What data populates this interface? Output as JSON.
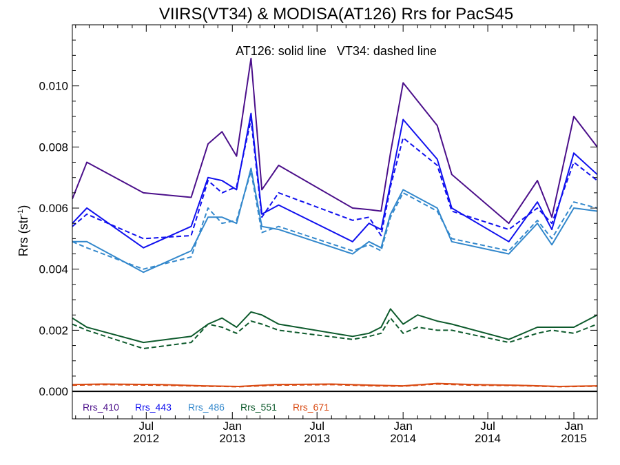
{
  "chart_data": {
    "type": "line",
    "title": "VIIRS(VT34) & MODISA(AT126)  Rrs for PacS45",
    "annotation": "AT126: solid line   VT34: dashed line",
    "ylabel": {
      "main": "Rrs (str",
      "sup": "-1",
      "close": ")"
    },
    "ylim": [
      -0.0009,
      0.012
    ],
    "yticks": [
      0.0,
      0.002,
      0.004,
      0.006,
      0.008,
      0.01
    ],
    "ytick_labels": [
      "0.000",
      "0.002",
      "0.004",
      "0.006",
      "0.008",
      "0.010"
    ],
    "xlim": [
      "2012-01-25",
      "2015-02-20"
    ],
    "xticks": [
      {
        "date": "2012-07-01",
        "month": "Jul",
        "year": "2012"
      },
      {
        "date": "2013-01-01",
        "month": "Jan",
        "year": "2013"
      },
      {
        "date": "2013-07-01",
        "month": "Jul",
        "year": "2013"
      },
      {
        "date": "2014-01-01",
        "month": "Jan",
        "year": "2014"
      },
      {
        "date": "2014-07-01",
        "month": "Jul",
        "year": "2014"
      },
      {
        "date": "2015-01-01",
        "month": "Jan",
        "year": "2015"
      }
    ],
    "line_styles": {
      "AT126": "solid",
      "VT34": "dashed"
    },
    "series": [
      {
        "name": "Rrs_410",
        "color": "#4b0f8a",
        "AT126": [
          [
            "2012-01-25",
            0.0063
          ],
          [
            "2012-02-25",
            0.0075
          ],
          [
            "2012-06-25",
            0.0065
          ],
          [
            "2012-10-05",
            0.00635
          ],
          [
            "2012-11-10",
            0.0081
          ],
          [
            "2012-12-10",
            0.0085
          ],
          [
            "2013-01-10",
            0.0077
          ],
          [
            "2013-02-10",
            0.0109
          ],
          [
            "2013-03-05",
            0.0066
          ],
          [
            "2013-04-10",
            0.0074
          ],
          [
            "2013-09-15",
            0.006
          ],
          [
            "2013-10-20",
            0.00595
          ],
          [
            "2013-11-15",
            0.0059
          ],
          [
            "2013-12-05",
            0.0078
          ],
          [
            "2014-01-01",
            0.0101
          ],
          [
            "2014-03-15",
            0.0087
          ],
          [
            "2014-04-15",
            0.0071
          ],
          [
            "2014-08-15",
            0.0055
          ],
          [
            "2014-10-15",
            0.0069
          ],
          [
            "2014-11-15",
            0.0057
          ],
          [
            "2015-01-01",
            0.009
          ],
          [
            "2015-02-20",
            0.008
          ]
        ]
      },
      {
        "name": "Rrs_443",
        "color": "#1010ee",
        "AT126": [
          [
            "2012-01-25",
            0.0055
          ],
          [
            "2012-02-25",
            0.006
          ],
          [
            "2012-06-25",
            0.0047
          ],
          [
            "2012-10-05",
            0.0054
          ],
          [
            "2012-11-10",
            0.007
          ],
          [
            "2012-12-10",
            0.0069
          ],
          [
            "2013-01-10",
            0.0066
          ],
          [
            "2013-02-10",
            0.0091
          ],
          [
            "2013-03-05",
            0.0058
          ],
          [
            "2013-04-10",
            0.0061
          ],
          [
            "2013-09-15",
            0.0049
          ],
          [
            "2013-10-20",
            0.0055
          ],
          [
            "2013-11-15",
            0.0053
          ],
          [
            "2013-12-05",
            0.0068
          ],
          [
            "2014-01-01",
            0.0089
          ],
          [
            "2014-03-15",
            0.0076
          ],
          [
            "2014-04-15",
            0.006
          ],
          [
            "2014-08-15",
            0.0049
          ],
          [
            "2014-10-15",
            0.0062
          ],
          [
            "2014-11-15",
            0.0053
          ],
          [
            "2015-01-01",
            0.0078
          ],
          [
            "2015-02-20",
            0.0071
          ]
        ],
        "VT34": [
          [
            "2012-01-25",
            0.0054
          ],
          [
            "2012-02-25",
            0.0058
          ],
          [
            "2012-06-25",
            0.005
          ],
          [
            "2012-10-05",
            0.0051
          ],
          [
            "2012-11-10",
            0.0069
          ],
          [
            "2012-12-10",
            0.0065
          ],
          [
            "2013-01-10",
            0.0067
          ],
          [
            "2013-02-10",
            0.0089
          ],
          [
            "2013-03-05",
            0.0057
          ],
          [
            "2013-04-10",
            0.0065
          ],
          [
            "2013-09-15",
            0.0056
          ],
          [
            "2013-10-20",
            0.0057
          ],
          [
            "2013-11-15",
            0.0051
          ],
          [
            "2013-12-05",
            0.0067
          ],
          [
            "2014-01-01",
            0.0083
          ],
          [
            "2014-03-15",
            0.0074
          ],
          [
            "2014-04-15",
            0.0059
          ],
          [
            "2014-08-15",
            0.0053
          ],
          [
            "2014-10-15",
            0.006
          ],
          [
            "2014-11-15",
            0.0055
          ],
          [
            "2015-01-01",
            0.0075
          ],
          [
            "2015-02-20",
            0.0069
          ]
        ]
      },
      {
        "name": "Rrs_486",
        "color": "#3388cc",
        "AT126": [
          [
            "2012-01-25",
            0.0049
          ],
          [
            "2012-02-25",
            0.0049
          ],
          [
            "2012-06-25",
            0.0039
          ],
          [
            "2012-10-05",
            0.0046
          ],
          [
            "2012-11-10",
            0.0057
          ],
          [
            "2012-12-10",
            0.0057
          ],
          [
            "2013-01-10",
            0.0055
          ],
          [
            "2013-02-10",
            0.0073
          ],
          [
            "2013-03-05",
            0.0054
          ],
          [
            "2013-04-10",
            0.0053
          ],
          [
            "2013-09-15",
            0.0045
          ],
          [
            "2013-10-20",
            0.0049
          ],
          [
            "2013-11-15",
            0.0047
          ],
          [
            "2013-12-05",
            0.0058
          ],
          [
            "2014-01-01",
            0.0066
          ],
          [
            "2014-03-15",
            0.006
          ],
          [
            "2014-04-15",
            0.0049
          ],
          [
            "2014-08-15",
            0.0045
          ],
          [
            "2014-10-15",
            0.0055
          ],
          [
            "2014-11-15",
            0.0048
          ],
          [
            "2015-01-01",
            0.006
          ],
          [
            "2015-02-20",
            0.0059
          ]
        ],
        "VT34": [
          [
            "2012-01-25",
            0.0049
          ],
          [
            "2012-02-25",
            0.0047
          ],
          [
            "2012-06-25",
            0.004
          ],
          [
            "2012-10-05",
            0.0044
          ],
          [
            "2012-11-10",
            0.006
          ],
          [
            "2012-12-10",
            0.0055
          ],
          [
            "2013-01-10",
            0.0056
          ],
          [
            "2013-02-10",
            0.0072
          ],
          [
            "2013-03-05",
            0.0052
          ],
          [
            "2013-04-10",
            0.0054
          ],
          [
            "2013-09-15",
            0.0046
          ],
          [
            "2013-10-20",
            0.0048
          ],
          [
            "2013-11-15",
            0.0046
          ],
          [
            "2013-12-05",
            0.0057
          ],
          [
            "2014-01-01",
            0.0065
          ],
          [
            "2014-03-15",
            0.0059
          ],
          [
            "2014-04-15",
            0.005
          ],
          [
            "2014-08-15",
            0.0046
          ],
          [
            "2014-10-15",
            0.0056
          ],
          [
            "2014-11-15",
            0.005
          ],
          [
            "2015-01-01",
            0.0062
          ],
          [
            "2015-02-20",
            0.006
          ]
        ]
      },
      {
        "name": "Rrs_551",
        "color": "#0d5a2c",
        "AT126": [
          [
            "2012-01-25",
            0.0024
          ],
          [
            "2012-02-25",
            0.0021
          ],
          [
            "2012-06-25",
            0.0016
          ],
          [
            "2012-10-05",
            0.0018
          ],
          [
            "2012-11-10",
            0.0022
          ],
          [
            "2012-12-10",
            0.0024
          ],
          [
            "2013-01-10",
            0.0021
          ],
          [
            "2013-02-10",
            0.0026
          ],
          [
            "2013-03-05",
            0.0025
          ],
          [
            "2013-04-10",
            0.0022
          ],
          [
            "2013-09-15",
            0.0018
          ],
          [
            "2013-10-20",
            0.0019
          ],
          [
            "2013-11-15",
            0.0021
          ],
          [
            "2013-12-05",
            0.0027
          ],
          [
            "2014-01-01",
            0.0022
          ],
          [
            "2014-02-01",
            0.0025
          ],
          [
            "2014-03-15",
            0.0023
          ],
          [
            "2014-04-15",
            0.0022
          ],
          [
            "2014-08-15",
            0.0017
          ],
          [
            "2014-10-15",
            0.0021
          ],
          [
            "2014-11-15",
            0.0021
          ],
          [
            "2015-01-01",
            0.0021
          ],
          [
            "2015-02-20",
            0.0025
          ]
        ],
        "VT34": [
          [
            "2012-01-25",
            0.0022
          ],
          [
            "2012-02-25",
            0.002
          ],
          [
            "2012-06-25",
            0.0014
          ],
          [
            "2012-10-05",
            0.0016
          ],
          [
            "2012-11-10",
            0.0022
          ],
          [
            "2012-12-10",
            0.0021
          ],
          [
            "2013-01-10",
            0.0019
          ],
          [
            "2013-02-10",
            0.0023
          ],
          [
            "2013-03-05",
            0.0022
          ],
          [
            "2013-04-10",
            0.002
          ],
          [
            "2013-09-15",
            0.0017
          ],
          [
            "2013-10-20",
            0.0018
          ],
          [
            "2013-11-15",
            0.0019
          ],
          [
            "2013-12-05",
            0.0024
          ],
          [
            "2014-01-01",
            0.0019
          ],
          [
            "2014-02-01",
            0.0021
          ],
          [
            "2014-03-15",
            0.002
          ],
          [
            "2014-04-15",
            0.002
          ],
          [
            "2014-08-15",
            0.0016
          ],
          [
            "2014-10-15",
            0.0019
          ],
          [
            "2014-11-15",
            0.002
          ],
          [
            "2015-01-01",
            0.0019
          ],
          [
            "2015-02-20",
            0.0022
          ]
        ]
      },
      {
        "name": "Rrs_671",
        "color": "#d94a12",
        "AT126": [
          [
            "2012-01-25",
            0.00022
          ],
          [
            "2012-04-01",
            0.00024
          ],
          [
            "2012-08-01",
            0.00022
          ],
          [
            "2012-11-01",
            0.00018
          ],
          [
            "2013-01-15",
            0.00016
          ],
          [
            "2013-04-01",
            0.00022
          ],
          [
            "2013-08-01",
            0.00024
          ],
          [
            "2013-11-01",
            0.0002
          ],
          [
            "2014-01-01",
            0.00018
          ],
          [
            "2014-03-15",
            0.00026
          ],
          [
            "2014-06-01",
            0.00022
          ],
          [
            "2014-09-01",
            0.0002
          ],
          [
            "2014-12-01",
            0.00016
          ],
          [
            "2015-02-20",
            0.00018
          ]
        ],
        "VT34": [
          [
            "2012-01-25",
            0.0002
          ],
          [
            "2012-04-01",
            0.00022
          ],
          [
            "2012-08-01",
            0.0002
          ],
          [
            "2012-11-01",
            0.00017
          ],
          [
            "2013-01-15",
            0.00015
          ],
          [
            "2013-04-01",
            0.0002
          ],
          [
            "2013-08-01",
            0.00022
          ],
          [
            "2013-11-01",
            0.00018
          ],
          [
            "2014-01-01",
            0.00017
          ],
          [
            "2014-03-15",
            0.00024
          ],
          [
            "2014-06-01",
            0.0002
          ],
          [
            "2014-09-01",
            0.00019
          ],
          [
            "2014-12-01",
            0.00015
          ],
          [
            "2015-02-20",
            0.00017
          ]
        ]
      }
    ]
  }
}
